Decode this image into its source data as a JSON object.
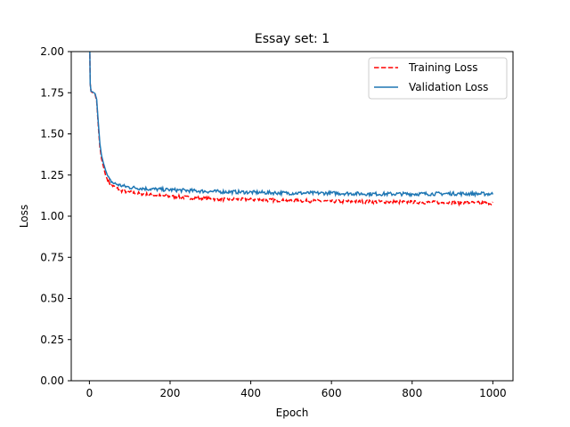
{
  "chart_data": {
    "type": "line",
    "title": "Essay set: 1",
    "xlabel": "Epoch",
    "ylabel": "Loss",
    "xlim": [
      -45,
      1050
    ],
    "ylim": [
      0.0,
      2.0
    ],
    "xticks": [
      0,
      200,
      400,
      600,
      800,
      1000
    ],
    "yticks": [
      "0.00",
      "0.25",
      "0.50",
      "0.75",
      "1.00",
      "1.25",
      "1.50",
      "1.75",
      "2.00"
    ],
    "legend": "top-right",
    "grid": false,
    "series": [
      {
        "name": "Training Loss",
        "color": "#ff0000",
        "style": "dashed",
        "points": [
          [
            0,
            2.2
          ],
          [
            1,
            1.85
          ],
          [
            3,
            1.76
          ],
          [
            8,
            1.75
          ],
          [
            14,
            1.74
          ],
          [
            18,
            1.7
          ],
          [
            22,
            1.55
          ],
          [
            26,
            1.42
          ],
          [
            30,
            1.35
          ],
          [
            35,
            1.3
          ],
          [
            40,
            1.25
          ],
          [
            45,
            1.22
          ],
          [
            50,
            1.2
          ],
          [
            60,
            1.18
          ],
          [
            80,
            1.155
          ],
          [
            100,
            1.145
          ],
          [
            150,
            1.13
          ],
          [
            200,
            1.12
          ],
          [
            300,
            1.105
          ],
          [
            400,
            1.1
          ],
          [
            500,
            1.095
          ],
          [
            600,
            1.09
          ],
          [
            700,
            1.088
          ],
          [
            800,
            1.085
          ],
          [
            900,
            1.082
          ],
          [
            1000,
            1.08
          ]
        ]
      },
      {
        "name": "Validation Loss",
        "color": "#1f77b4",
        "style": "solid",
        "points": [
          [
            0,
            2.2
          ],
          [
            1,
            1.85
          ],
          [
            3,
            1.76
          ],
          [
            8,
            1.755
          ],
          [
            14,
            1.745
          ],
          [
            18,
            1.71
          ],
          [
            22,
            1.57
          ],
          [
            26,
            1.44
          ],
          [
            30,
            1.37
          ],
          [
            35,
            1.32
          ],
          [
            40,
            1.28
          ],
          [
            45,
            1.245
          ],
          [
            50,
            1.22
          ],
          [
            60,
            1.2
          ],
          [
            80,
            1.185
          ],
          [
            100,
            1.175
          ],
          [
            150,
            1.165
          ],
          [
            200,
            1.16
          ],
          [
            300,
            1.15
          ],
          [
            400,
            1.145
          ],
          [
            500,
            1.14
          ],
          [
            600,
            1.14
          ],
          [
            700,
            1.135
          ],
          [
            800,
            1.135
          ],
          [
            900,
            1.137
          ],
          [
            1000,
            1.135
          ]
        ]
      }
    ]
  }
}
